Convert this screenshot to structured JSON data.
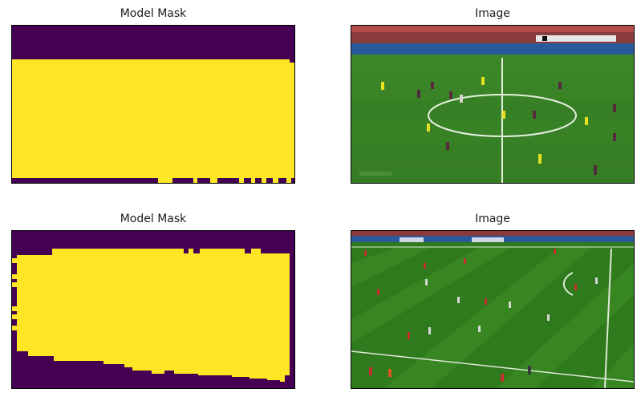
{
  "figure": {
    "panels": [
      {
        "title": "Model Mask",
        "kind": "mask",
        "colors": {
          "background": "#440154",
          "foreground": "#fde725"
        }
      },
      {
        "title": "Image",
        "kind": "photo",
        "scene": "soccer-pitch-centre-circle"
      },
      {
        "title": "Model Mask",
        "kind": "mask",
        "colors": {
          "background": "#440154",
          "foreground": "#fde725"
        }
      },
      {
        "title": "Image",
        "kind": "photo",
        "scene": "soccer-pitch-striped"
      }
    ]
  }
}
